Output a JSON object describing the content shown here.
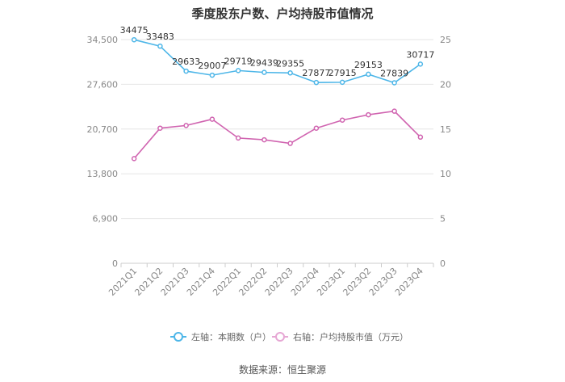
{
  "chart_data": {
    "type": "line",
    "title": "季度股东户数、户均持股市值情况",
    "categories": [
      "2021Q1",
      "2021Q2",
      "2021Q3",
      "2021Q4",
      "2022Q1",
      "2022Q2",
      "2022Q3",
      "2022Q4",
      "2023Q1",
      "2023Q2",
      "2023Q3",
      "2023Q4"
    ],
    "left_axis": {
      "ticks": [
        "0",
        "6,900",
        "13,800",
        "20,700",
        "27,600",
        "34,500"
      ],
      "ylim": [
        0,
        34500
      ]
    },
    "right_axis": {
      "ticks": [
        "0",
        "5",
        "10",
        "15",
        "20",
        "25"
      ],
      "ylim": [
        0,
        25
      ]
    },
    "series": [
      {
        "name": "左轴：本期数（户）",
        "axis": "left",
        "color": "#4db6e8",
        "values": [
          34475,
          33483,
          29633,
          29007,
          29719,
          29439,
          29355,
          27877,
          27915,
          29153,
          27839,
          30717
        ],
        "labels": [
          "34475",
          "33483",
          "29633",
          "29007",
          "29719",
          "29439",
          "29355",
          "27877",
          "27915",
          "29153",
          "27839",
          "30717"
        ]
      },
      {
        "name": "右轴：户均持股市值（万元）",
        "axis": "right",
        "color": "#d064b0",
        "values": [
          11.7,
          15.1,
          15.4,
          16.1,
          14.0,
          13.8,
          13.4,
          15.1,
          16.0,
          16.6,
          17.0,
          14.1
        ]
      }
    ],
    "grid": true,
    "legend": "bottom-center"
  },
  "footer": {
    "source": "数据来源：恒生聚源"
  }
}
